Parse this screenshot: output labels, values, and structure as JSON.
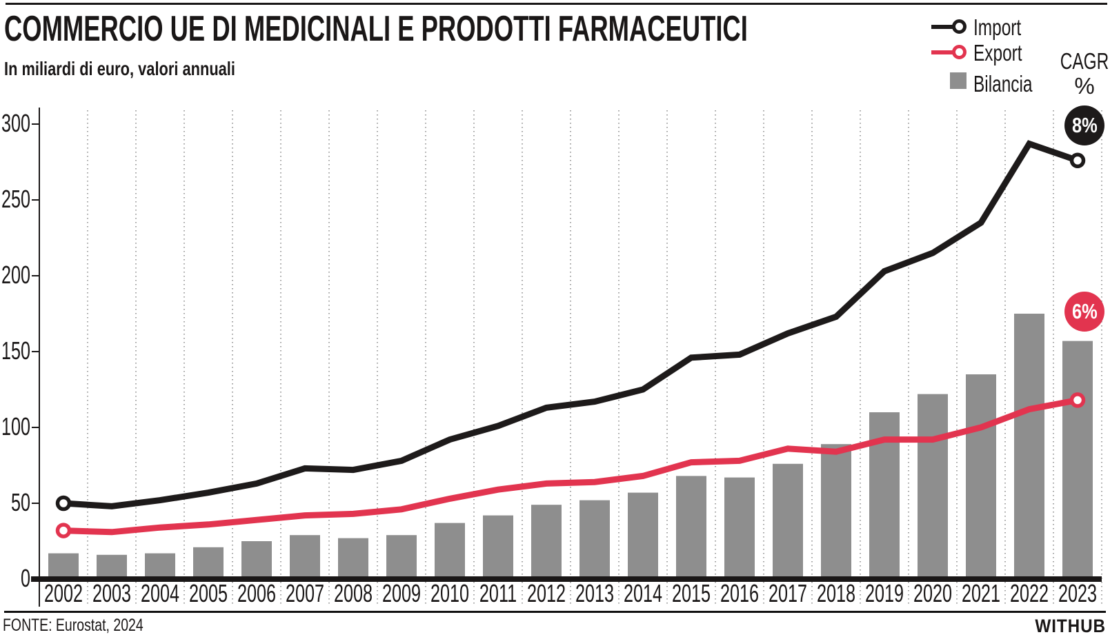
{
  "header": {
    "title": "COMMERCIO UE DI MEDICINALI E PRODOTTI FARMACEUTICI",
    "subtitle": "In miliardi di euro, valori annuali"
  },
  "legend": {
    "items": [
      {
        "label": "Import",
        "swatch": "line-with-ring",
        "color": "#1d1a1a"
      },
      {
        "label": "Export",
        "swatch": "line-with-ring",
        "color": "#e2344f"
      },
      {
        "label": "Bilancia",
        "swatch": "square",
        "color": "#8e8e8e"
      }
    ],
    "cagr_label": "CAGR",
    "cagr_unit": "%"
  },
  "badges": {
    "import_cagr": "8%",
    "export_cagr": "6%"
  },
  "colors": {
    "import": "#1d1a1a",
    "export": "#e2344f",
    "bilancia": "#8e8e8e",
    "text": "#1a1717",
    "grid": "#7a7a7a",
    "badge_import_bg": "#1d1a1a",
    "badge_export_bg": "#e2344f"
  },
  "footer": {
    "source": "FONTE: Eurostat, 2024",
    "brand": "WITHUB"
  },
  "chart_data": {
    "type": "combo-bar-line",
    "title": "COMMERCIO UE DI MEDICINALI E PRODOTTI FARMACEUTICI",
    "subtitle": "In miliardi di euro, valori annuali",
    "categories": [
      "2002",
      "2003",
      "2004",
      "2005",
      "2006",
      "2007",
      "2008",
      "2009",
      "2010",
      "2011",
      "2012",
      "2013",
      "2014",
      "2015",
      "2016",
      "2017",
      "2018",
      "2019",
      "2020",
      "2021",
      "2022",
      "2023"
    ],
    "series": [
      {
        "name": "Import",
        "type": "line",
        "color": "#1d1a1a",
        "values": [
          50,
          48,
          52,
          57,
          63,
          73,
          72,
          78,
          92,
          101,
          113,
          117,
          125,
          146,
          148,
          162,
          173,
          203,
          215,
          235,
          287,
          276
        ]
      },
      {
        "name": "Export",
        "type": "line",
        "color": "#e2344f",
        "values": [
          32,
          31,
          34,
          36,
          39,
          42,
          43,
          46,
          53,
          59,
          63,
          64,
          68,
          77,
          78,
          86,
          84,
          92,
          92,
          100,
          112,
          118
        ]
      },
      {
        "name": "Bilancia",
        "type": "bar",
        "color": "#8e8e8e",
        "values": [
          17,
          16,
          17,
          21,
          25,
          29,
          27,
          29,
          37,
          42,
          49,
          52,
          57,
          68,
          67,
          76,
          89,
          110,
          122,
          135,
          175,
          157
        ]
      }
    ],
    "xlabel": "",
    "ylabel": "",
    "ylim": [
      0,
      300
    ],
    "yticks": [
      0,
      50,
      100,
      150,
      200,
      250,
      300
    ],
    "grid": "vertical-dotted-between-categories",
    "legend_position": "top-right",
    "annotations": {
      "import_cagr": "8%",
      "export_cagr": "6%"
    }
  }
}
